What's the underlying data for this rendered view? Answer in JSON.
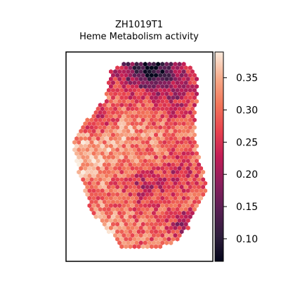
{
  "chart_data": {
    "type": "scatter",
    "title_line1": "ZH1019T1",
    "title_line2": "Heme Metabolism activity",
    "xlabel": "",
    "ylabel": "",
    "axis_ticks_visible": false,
    "grid": false,
    "marker": "hexagon",
    "colormap": "rocket",
    "colorbar": {
      "position": "right",
      "vmin": 0.065,
      "vmax": 0.39,
      "ticks": [
        0.1,
        0.15,
        0.2,
        0.25,
        0.3,
        0.35
      ],
      "tick_labels": [
        "0.10",
        "0.15",
        "0.20",
        "0.25",
        "0.30",
        "0.35"
      ]
    },
    "value_summary": {
      "typical_range": [
        0.22,
        0.36
      ],
      "low_regions": [
        "top edge of tissue",
        "center-right interior",
        "lower-right interior"
      ],
      "high_regions": [
        "left lobe",
        "bottom-left edge"
      ]
    }
  }
}
